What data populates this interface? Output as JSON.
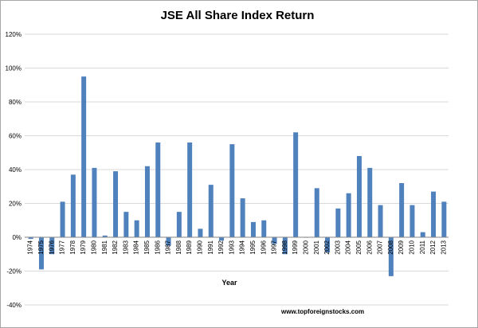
{
  "chart_data": {
    "type": "bar",
    "title": "JSE All Share Index Return",
    "xlabel": "Year",
    "ylabel": "",
    "source": "www.topforeignstocks.com",
    "ylim": [
      -40,
      120
    ],
    "yticks": [
      "-40%",
      "-20%",
      "0%",
      "20%",
      "40%",
      "60%",
      "80%",
      "100%",
      "120%"
    ],
    "grid": true,
    "legend": "none",
    "bar_color": "#4f81bd",
    "categories": [
      "1974",
      "1975",
      "1976",
      "1977",
      "1978",
      "1979",
      "1980",
      "1981",
      "1982",
      "1983",
      "1984",
      "1985",
      "1986",
      "1987",
      "1988",
      "1989",
      "1990",
      "1991",
      "1992",
      "1993",
      "1994",
      "1995",
      "1996",
      "1997",
      "1998",
      "1999",
      "2000",
      "2001",
      "2002",
      "2003",
      "2004",
      "2005",
      "2006",
      "2007",
      "2008",
      "2009",
      "2010",
      "2011",
      "2012",
      "2013"
    ],
    "values": [
      -1,
      -19,
      -10,
      21,
      37,
      95,
      41,
      1,
      39,
      15,
      10,
      42,
      56,
      -5,
      15,
      56,
      5,
      31,
      -2,
      55,
      23,
      9,
      10,
      -4,
      -10,
      62,
      0,
      29,
      -9,
      17,
      26,
      48,
      41,
      19,
      -23,
      32,
      19,
      3,
      27,
      21
    ]
  }
}
